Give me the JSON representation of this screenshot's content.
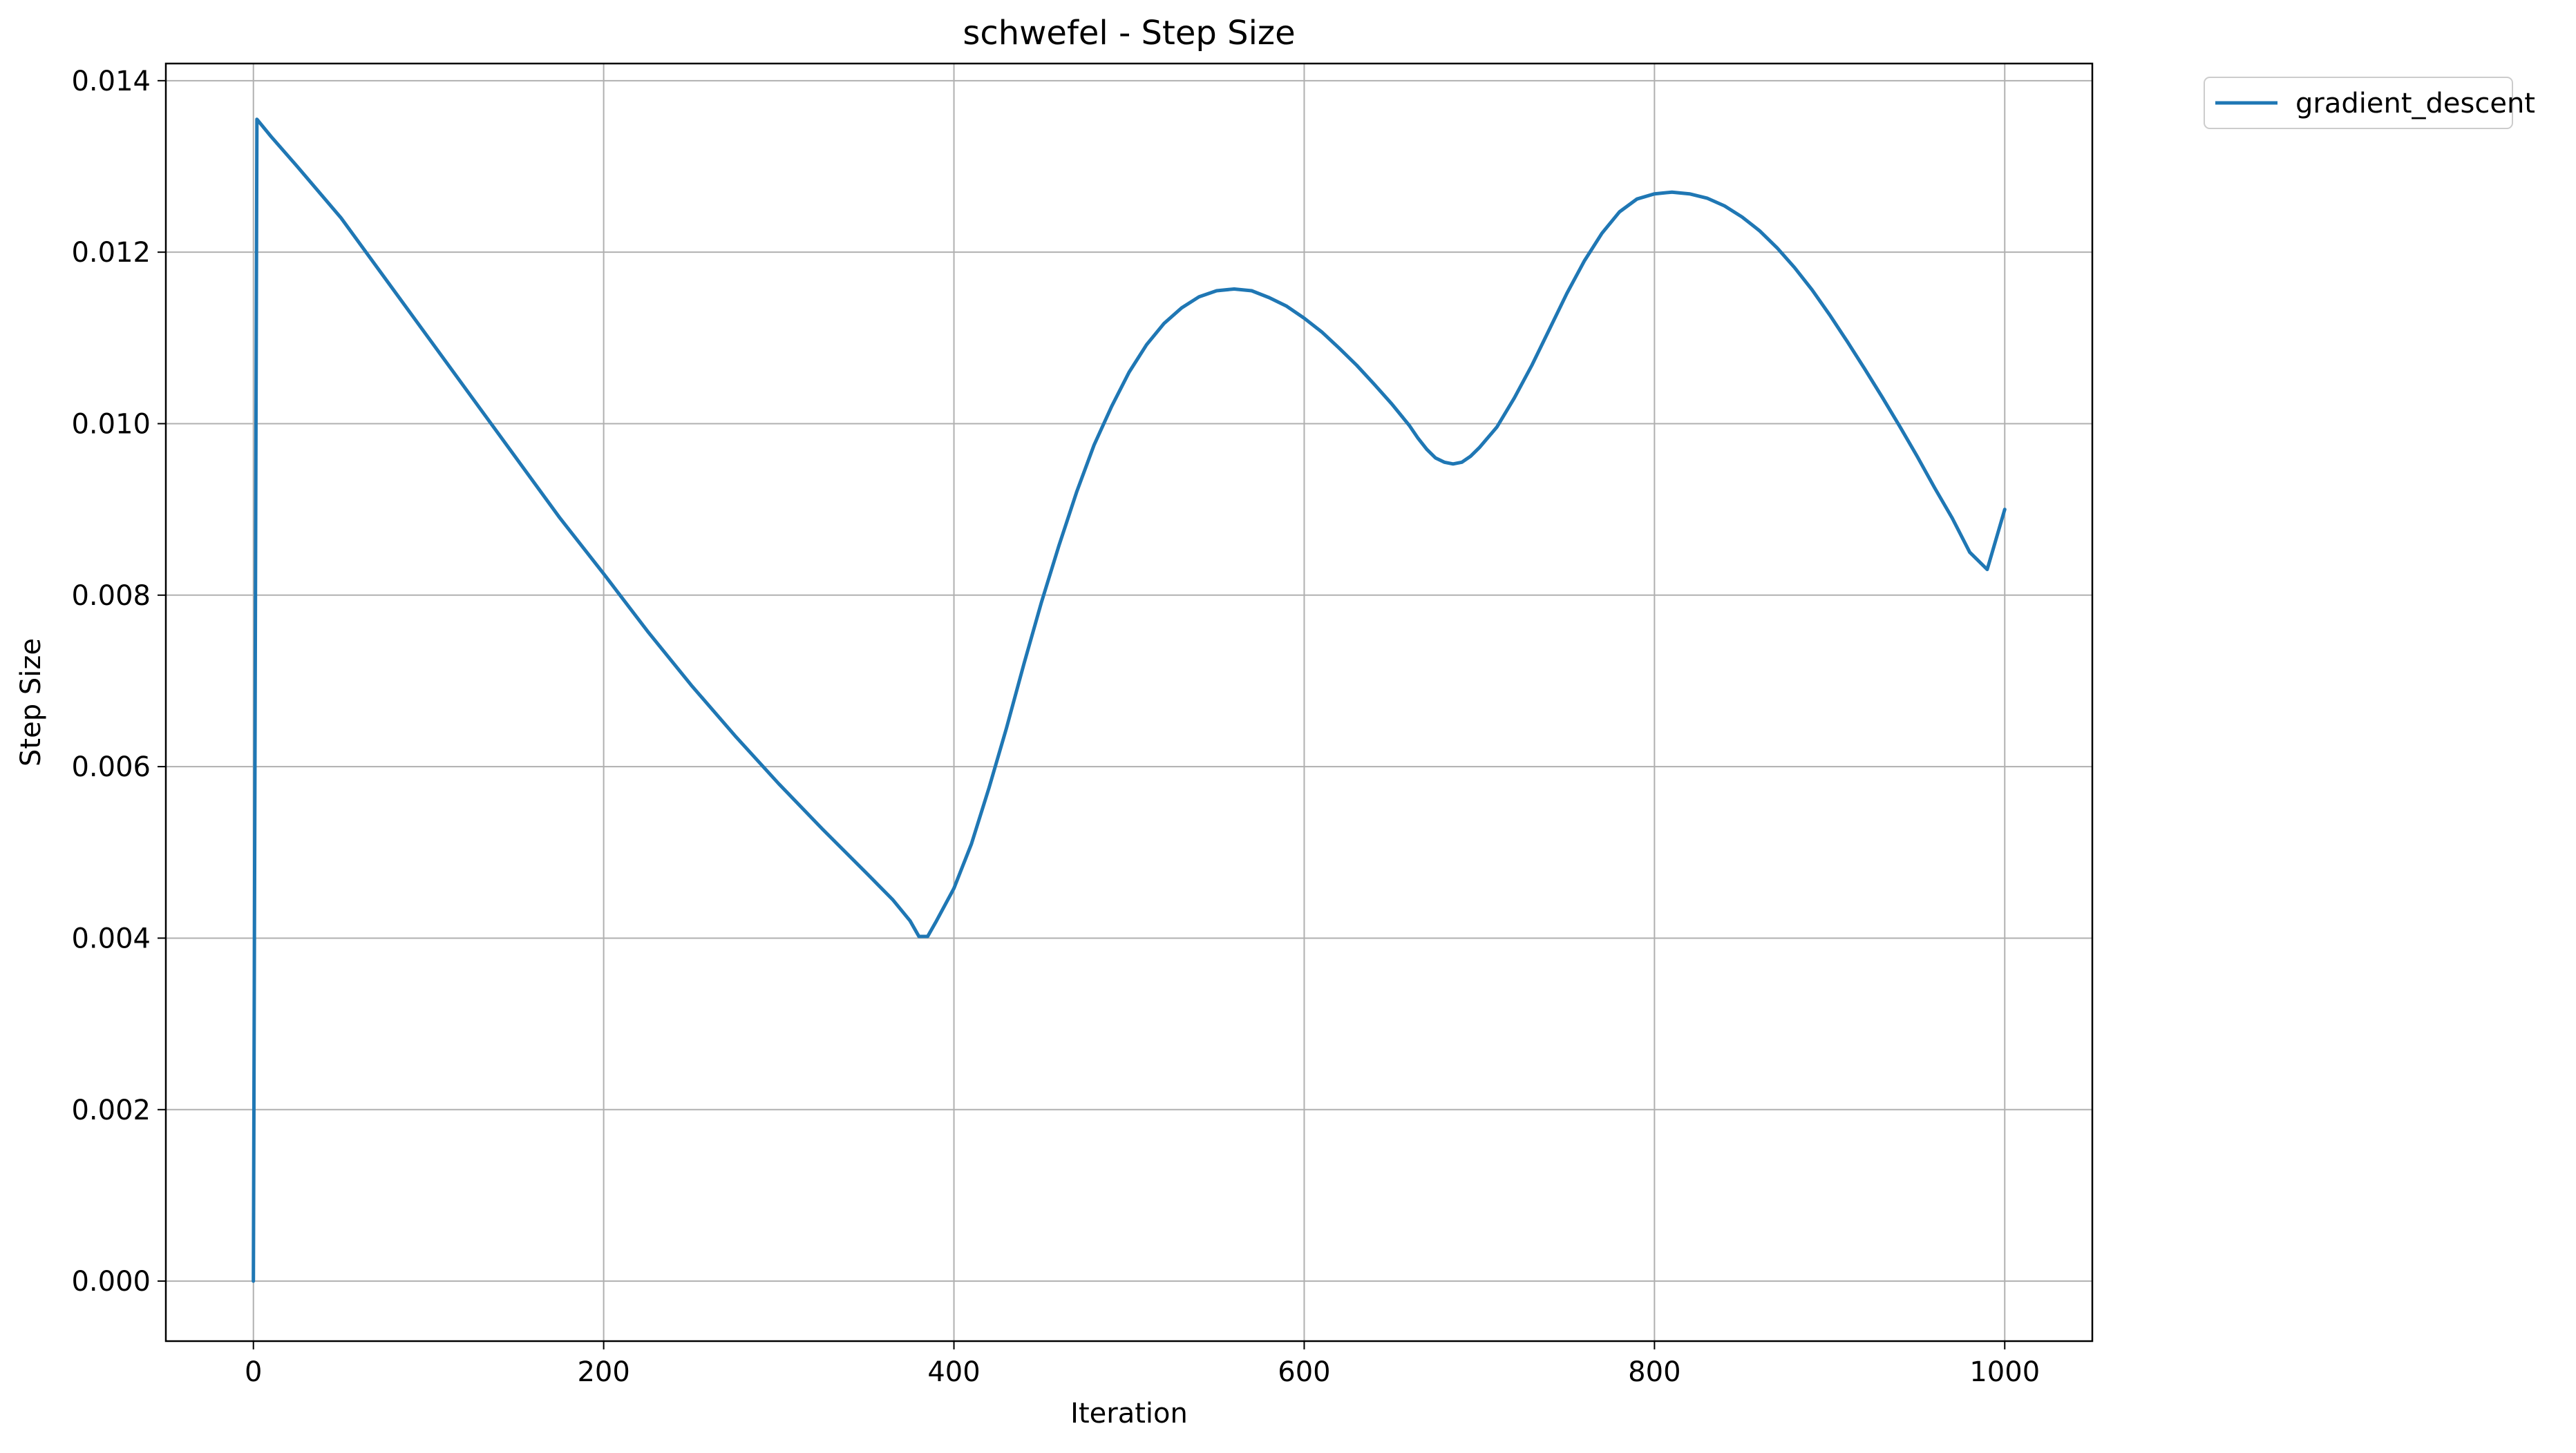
{
  "chart_data": {
    "type": "line",
    "title": "schwefel - Step Size",
    "xlabel": "Iteration",
    "ylabel": "Step Size",
    "xlim": [
      -50,
      1050
    ],
    "ylim": [
      -0.0007,
      0.0142
    ],
    "xticks": [
      0,
      200,
      400,
      600,
      800,
      1000
    ],
    "xtick_labels": [
      "0",
      "200",
      "400",
      "600",
      "800",
      "1000"
    ],
    "yticks": [
      0.0,
      0.002,
      0.004,
      0.006,
      0.008,
      0.01,
      0.012,
      0.014
    ],
    "ytick_labels": [
      "0.000",
      "0.002",
      "0.004",
      "0.006",
      "0.008",
      "0.010",
      "0.012",
      "0.014"
    ],
    "grid": true,
    "legend_position": "outside-top-right",
    "series": [
      {
        "name": "gradient_descent",
        "color": "#1f77b4",
        "x": [
          0,
          2,
          10,
          25,
          50,
          75,
          100,
          125,
          150,
          175,
          200,
          225,
          250,
          275,
          300,
          325,
          350,
          365,
          375,
          380,
          385,
          390,
          400,
          410,
          420,
          430,
          440,
          450,
          460,
          470,
          480,
          490,
          500,
          510,
          520,
          530,
          540,
          550,
          560,
          570,
          580,
          590,
          600,
          610,
          620,
          630,
          640,
          650,
          660,
          665,
          670,
          675,
          680,
          685,
          690,
          695,
          700,
          710,
          720,
          730,
          740,
          750,
          760,
          770,
          780,
          790,
          800,
          810,
          820,
          830,
          840,
          850,
          860,
          870,
          880,
          890,
          900,
          910,
          920,
          930,
          940,
          950,
          960,
          970,
          980,
          990,
          1000
        ],
        "y": [
          0.0,
          0.01355,
          0.01335,
          0.013,
          0.0124,
          0.0117,
          0.011,
          0.0103,
          0.0096,
          0.0089,
          0.00825,
          0.00758,
          0.00695,
          0.00636,
          0.0058,
          0.00527,
          0.00476,
          0.00445,
          0.0042,
          0.00402,
          0.00402,
          0.0042,
          0.00458,
          0.0051,
          0.00575,
          0.00645,
          0.0072,
          0.00792,
          0.00858,
          0.0092,
          0.00975,
          0.0102,
          0.0106,
          0.01092,
          0.01117,
          0.01135,
          0.01148,
          0.01155,
          0.01157,
          0.01155,
          0.01147,
          0.01137,
          0.01123,
          0.01107,
          0.01088,
          0.01068,
          0.01046,
          0.01023,
          0.00998,
          0.00983,
          0.0097,
          0.0096,
          0.00955,
          0.00953,
          0.00955,
          0.00962,
          0.00972,
          0.00996,
          0.0103,
          0.01068,
          0.0111,
          0.01152,
          0.0119,
          0.01222,
          0.01247,
          0.01262,
          0.01268,
          0.0127,
          0.01268,
          0.01263,
          0.01254,
          0.01241,
          0.01225,
          0.01205,
          0.01182,
          0.01156,
          0.01127,
          0.01096,
          0.01064,
          0.01031,
          0.00997,
          0.00962,
          0.00925,
          0.0089,
          0.0085,
          0.0083,
          0.009
        ]
      }
    ]
  }
}
